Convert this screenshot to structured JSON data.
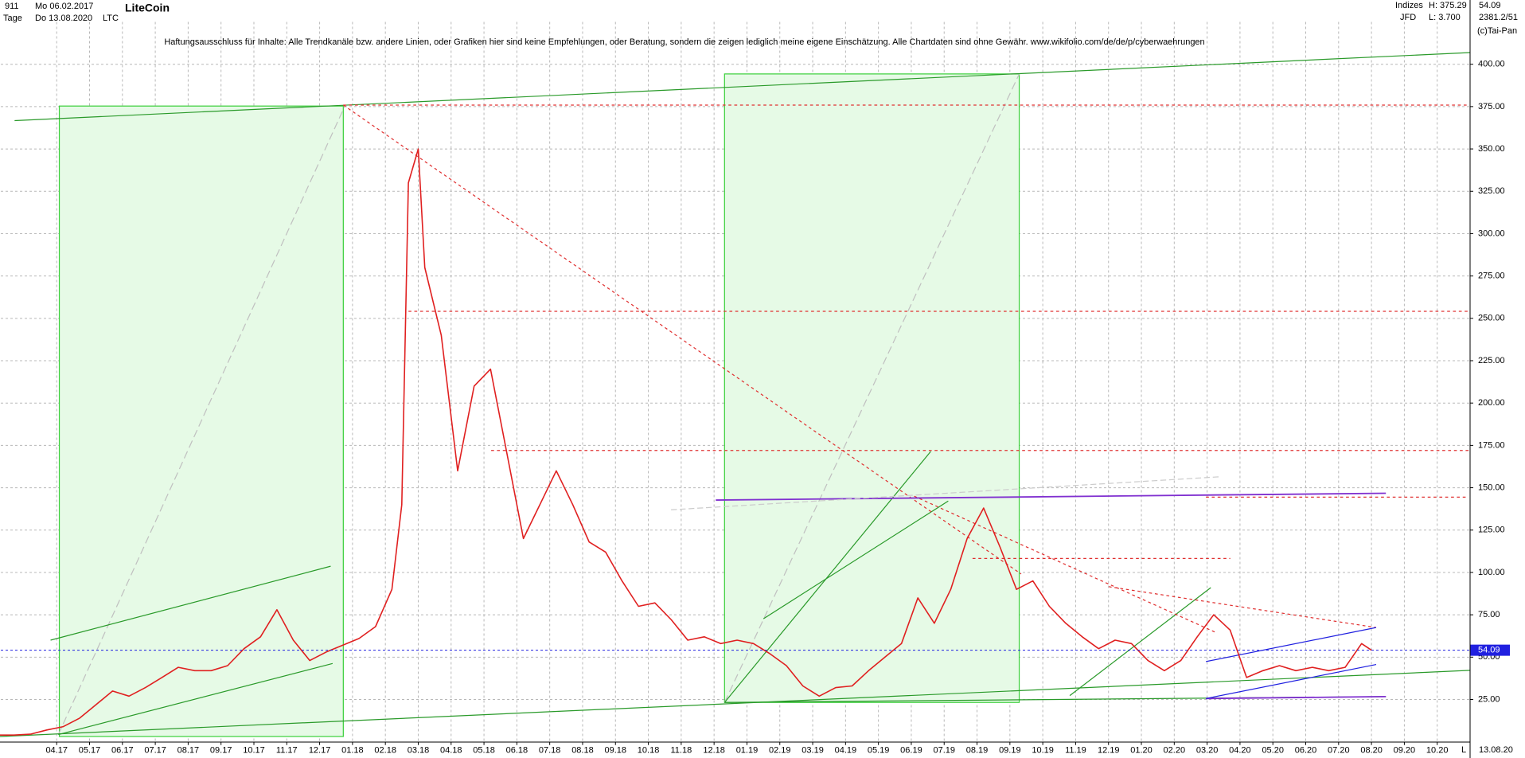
{
  "header": {
    "counter": "911",
    "start_date": "Mo 06.02.2017",
    "period": "Tage",
    "end_date": "Do 13.08.2020",
    "name": "LiteCoin",
    "symbol": "LTC",
    "group": "Indizes",
    "broker": "JFD",
    "high": "H: 375.29",
    "low": "L: 3.700",
    "last": "54.09",
    "info": "2381.2/51",
    "copyright": "(c)Tai-Pan",
    "bottom_date": "13.08.20",
    "bottom_mode": "L"
  },
  "chart_data": {
    "type": "line",
    "subtitle": "Haftungsausschluss für Inhalte: Alle Trendkanäle bzw. andere Linien, oder Grafiken hier sind keine Empfehlungen, oder Beratung, sondern die zeigen lediglich meine eigene Einschätzung. Alle Chartdaten sind ohne Gewähr.  www.wikifolio.com/de/de/p/cyberwaehrungen",
    "xlim": [
      0.3,
      45
    ],
    "xticks": [
      {
        "value": 2,
        "label": "04.17"
      },
      {
        "value": 3,
        "label": "05.17"
      },
      {
        "value": 4,
        "label": "06.17"
      },
      {
        "value": 5,
        "label": "07.17"
      },
      {
        "value": 6,
        "label": "08.17"
      },
      {
        "value": 7,
        "label": "09.17"
      },
      {
        "value": 8,
        "label": "10.17"
      },
      {
        "value": 9,
        "label": "11.17"
      },
      {
        "value": 10,
        "label": "12.17"
      },
      {
        "value": 11,
        "label": "01.18"
      },
      {
        "value": 12,
        "label": "02.18"
      },
      {
        "value": 13,
        "label": "03.18"
      },
      {
        "value": 14,
        "label": "04.18"
      },
      {
        "value": 15,
        "label": "05.18"
      },
      {
        "value": 16,
        "label": "06.18"
      },
      {
        "value": 17,
        "label": "07.18"
      },
      {
        "value": 18,
        "label": "08.18"
      },
      {
        "value": 19,
        "label": "09.18"
      },
      {
        "value": 20,
        "label": "10.18"
      },
      {
        "value": 21,
        "label": "11.18"
      },
      {
        "value": 22,
        "label": "12.18"
      },
      {
        "value": 23,
        "label": "01.19"
      },
      {
        "value": 24,
        "label": "02.19"
      },
      {
        "value": 25,
        "label": "03.19"
      },
      {
        "value": 26,
        "label": "04.19"
      },
      {
        "value": 27,
        "label": "05.19"
      },
      {
        "value": 28,
        "label": "06.19"
      },
      {
        "value": 29,
        "label": "07.19"
      },
      {
        "value": 30,
        "label": "08.19"
      },
      {
        "value": 31,
        "label": "09.19"
      },
      {
        "value": 32,
        "label": "10.19"
      },
      {
        "value": 33,
        "label": "11.19"
      },
      {
        "value": 34,
        "label": "12.19"
      },
      {
        "value": 35,
        "label": "01.20"
      },
      {
        "value": 36,
        "label": "02.20"
      },
      {
        "value": 37,
        "label": "03.20"
      },
      {
        "value": 38,
        "label": "04.20"
      },
      {
        "value": 39,
        "label": "05.20"
      },
      {
        "value": 40,
        "label": "06.20"
      },
      {
        "value": 41,
        "label": "07.20"
      },
      {
        "value": 42,
        "label": "08.20"
      },
      {
        "value": 43,
        "label": "09.20"
      },
      {
        "value": 44,
        "label": "10.20"
      }
    ],
    "ylim": [
      0,
      425
    ],
    "yticks": [
      {
        "value": 25,
        "label": "25.00"
      },
      {
        "value": 50,
        "label": "50.00"
      },
      {
        "value": 75,
        "label": "75.00"
      },
      {
        "value": 100,
        "label": "100.00"
      },
      {
        "value": 125,
        "label": "125.00"
      },
      {
        "value": 150,
        "label": "150.00"
      },
      {
        "value": 175,
        "label": "175.00"
      },
      {
        "value": 200,
        "label": "200.00"
      },
      {
        "value": 225,
        "label": "225.00"
      },
      {
        "value": 250,
        "label": "250.00"
      },
      {
        "value": 275,
        "label": "275.00"
      },
      {
        "value": 300,
        "label": "300.00"
      },
      {
        "value": 325,
        "label": "325.00"
      },
      {
        "value": 350,
        "label": "350.00"
      },
      {
        "value": 375,
        "label": "375.00"
      },
      {
        "value": 400,
        "label": "400.00"
      }
    ],
    "grid": true,
    "series": [
      {
        "color": "#e02020",
        "x": [
          0.2,
          0.7,
          1.2,
          1.7,
          2.2,
          2.7,
          3.2,
          3.7,
          4.2,
          4.7,
          5.2,
          5.7,
          6.2,
          6.7,
          7.2,
          7.7,
          8.2,
          8.7,
          9.2,
          9.7,
          10.2,
          10.7,
          11.2,
          11.7,
          12.2,
          12.5,
          12.7,
          13.0,
          13.2,
          13.7,
          14.2,
          14.7,
          15.2,
          15.7,
          16.2,
          16.7,
          17.2,
          17.7,
          18.2,
          18.7,
          19.2,
          19.7,
          20.2,
          20.7,
          21.2,
          21.7,
          22.2,
          22.7,
          23.2,
          23.7,
          24.2,
          24.7,
          25.2,
          25.7,
          26.2,
          26.7,
          27.2,
          27.7,
          28.2,
          28.7,
          29.2,
          29.7,
          30.2,
          30.7,
          31.2,
          31.7,
          32.2,
          32.7,
          33.2,
          33.7,
          34.2,
          34.7,
          35.2,
          35.7,
          36.2,
          36.7,
          37.2,
          37.7,
          38.2,
          38.7,
          39.2,
          39.7,
          40.2,
          40.7,
          41.2,
          41.7,
          42.0
        ],
        "values": [
          4,
          4,
          4.5,
          7,
          9,
          14,
          22,
          30,
          27,
          32,
          38,
          44,
          42,
          42,
          45,
          55,
          62,
          78,
          60,
          48,
          53,
          57,
          61,
          68,
          90,
          140,
          330,
          350,
          280,
          240,
          160,
          210,
          220,
          170,
          120,
          140,
          160,
          140,
          118,
          112,
          95,
          80,
          82,
          72,
          60,
          62,
          58,
          60,
          58,
          52,
          45,
          33,
          27,
          32,
          33,
          42,
          50,
          58,
          85,
          70,
          90,
          120,
          138,
          115,
          90,
          95,
          80,
          70,
          62,
          55,
          60,
          58,
          48,
          42,
          48,
          62,
          75,
          66,
          38,
          42,
          45,
          42,
          44,
          42,
          44,
          58,
          54.09
        ]
      }
    ]
  }
}
